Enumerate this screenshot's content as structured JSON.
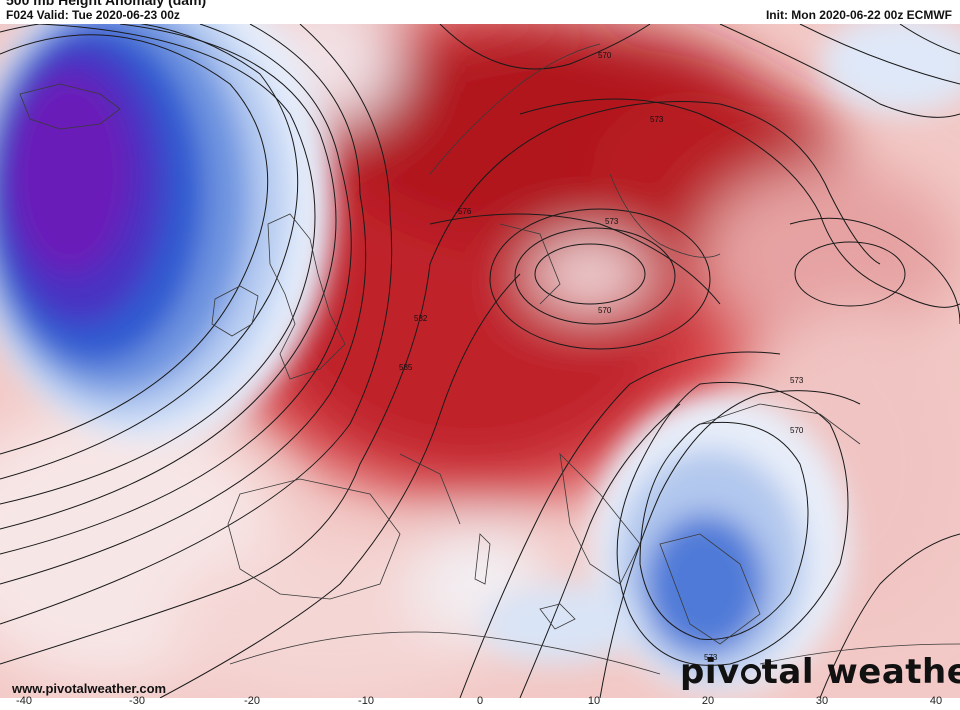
{
  "header": {
    "title": "500 mb Height Anomaly (dam)",
    "valid": "F024 Valid: Tue 2020-06-23 00z",
    "init": "Init: Mon 2020-06-22 00z ECMWF"
  },
  "contour_labels": [
    "570",
    "573",
    "576",
    "573",
    "570",
    "582",
    "585",
    "573",
    "570",
    "573"
  ],
  "footer": {
    "website": "www.pivotalweather.com",
    "logo_left": "piv",
    "logo_right": "tal weather",
    "lon_ticks": [
      "-40",
      "-30",
      "-20",
      "-10",
      "0",
      "10",
      "20",
      "30",
      "40"
    ]
  },
  "colors": {
    "ridge_red": "#b4121c",
    "trough_blue": "#2b57c6",
    "trough_purple": "#6a1fb8"
  }
}
